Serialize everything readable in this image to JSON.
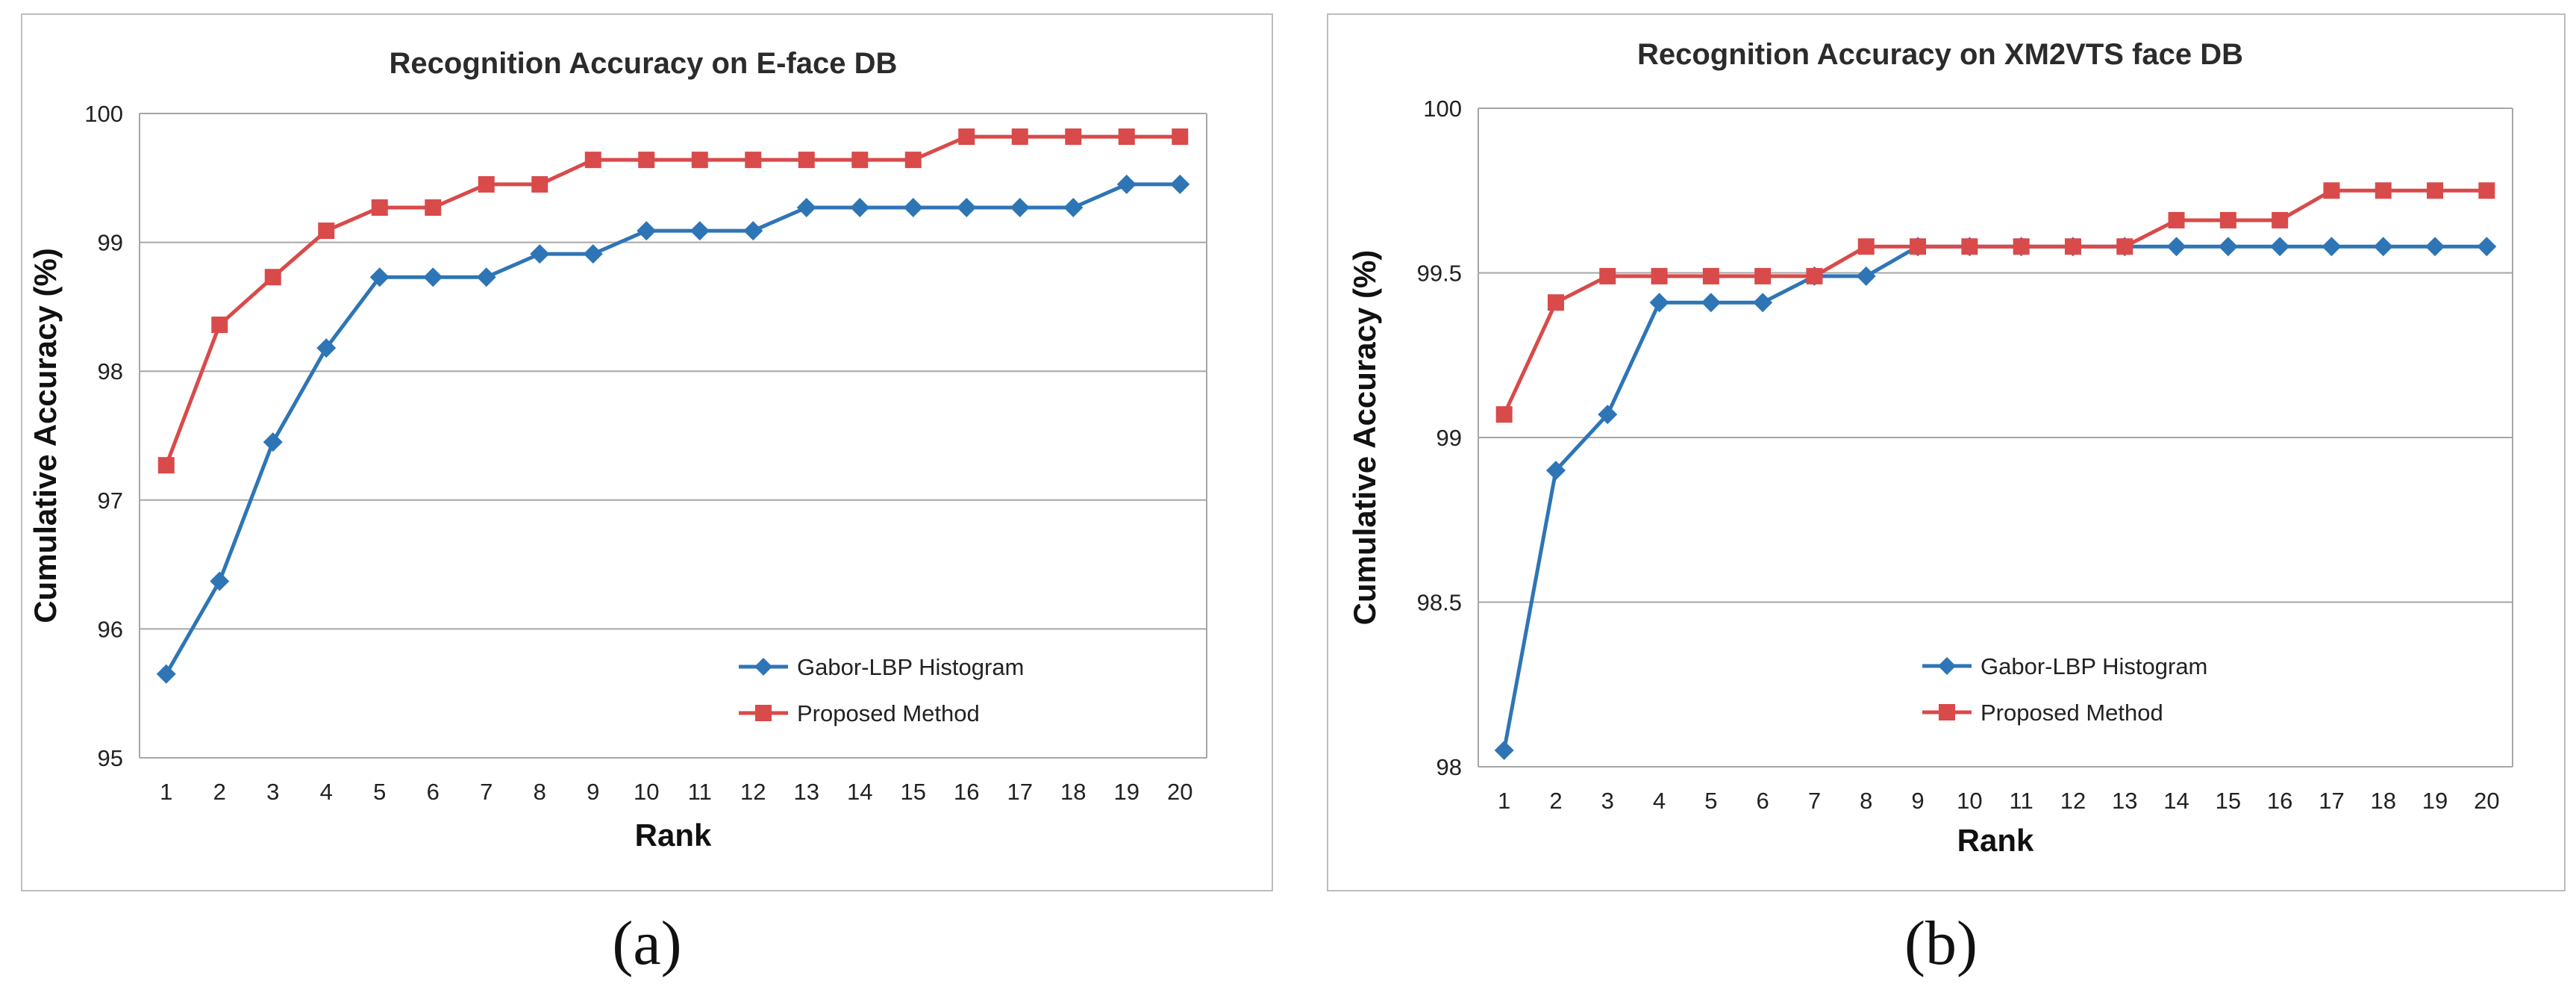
{
  "panels": [
    {
      "label": "(a)"
    },
    {
      "label": "(b)"
    }
  ],
  "colors": {
    "series_a": "#2e75b6",
    "series_b": "#d94a4a",
    "grid": "#a6a6a6",
    "frame": "#bdbdbd"
  },
  "chart_data": [
    {
      "type": "line",
      "title": "Recognition Accuracy on E-face DB",
      "xlabel": "Rank",
      "ylabel": "Cumulative Accuracy (%)",
      "x": [
        1,
        2,
        3,
        4,
        5,
        6,
        7,
        8,
        9,
        10,
        11,
        12,
        13,
        14,
        15,
        16,
        17,
        18,
        19,
        20
      ],
      "ylim": [
        95,
        100
      ],
      "yticks": [
        95,
        96,
        97,
        98,
        99,
        100
      ],
      "grid": true,
      "legend_position": "lower-right",
      "series": [
        {
          "name": "Gabor-LBP Histogram",
          "marker": "diamond",
          "color": "#2e75b6",
          "values": [
            95.65,
            96.37,
            97.45,
            98.18,
            98.73,
            98.73,
            98.73,
            98.91,
            98.91,
            99.09,
            99.09,
            99.09,
            99.27,
            99.27,
            99.27,
            99.27,
            99.27,
            99.27,
            99.45,
            99.45
          ]
        },
        {
          "name": "Proposed Method",
          "marker": "square",
          "color": "#d94a4a",
          "values": [
            97.27,
            98.36,
            98.73,
            99.09,
            99.27,
            99.27,
            99.45,
            99.45,
            99.64,
            99.64,
            99.64,
            99.64,
            99.64,
            99.64,
            99.64,
            99.82,
            99.82,
            99.82,
            99.82,
            99.82
          ]
        }
      ]
    },
    {
      "type": "line",
      "title": "Recognition Accuracy on XM2VTS face DB",
      "xlabel": "Rank",
      "ylabel": "Cumulative Accuracy (%)",
      "x": [
        1,
        2,
        3,
        4,
        5,
        6,
        7,
        8,
        9,
        10,
        11,
        12,
        13,
        14,
        15,
        16,
        17,
        18,
        19,
        20
      ],
      "ylim": [
        98,
        100
      ],
      "yticks": [
        98,
        98.5,
        99,
        99.5,
        100
      ],
      "grid": true,
      "legend_position": "lower-right",
      "series": [
        {
          "name": "Gabor-LBP Histogram",
          "marker": "diamond",
          "color": "#2e75b6",
          "values": [
            98.05,
            98.9,
            99.07,
            99.41,
            99.41,
            99.41,
            99.49,
            99.49,
            99.58,
            99.58,
            99.58,
            99.58,
            99.58,
            99.58,
            99.58,
            99.58,
            99.58,
            99.58,
            99.58,
            99.58
          ]
        },
        {
          "name": "Proposed Method",
          "marker": "square",
          "color": "#d94a4a",
          "values": [
            99.07,
            99.41,
            99.49,
            99.49,
            99.49,
            99.49,
            99.49,
            99.58,
            99.58,
            99.58,
            99.58,
            99.58,
            99.58,
            99.66,
            99.66,
            99.66,
            99.75,
            99.75,
            99.75,
            99.75
          ]
        }
      ]
    }
  ]
}
